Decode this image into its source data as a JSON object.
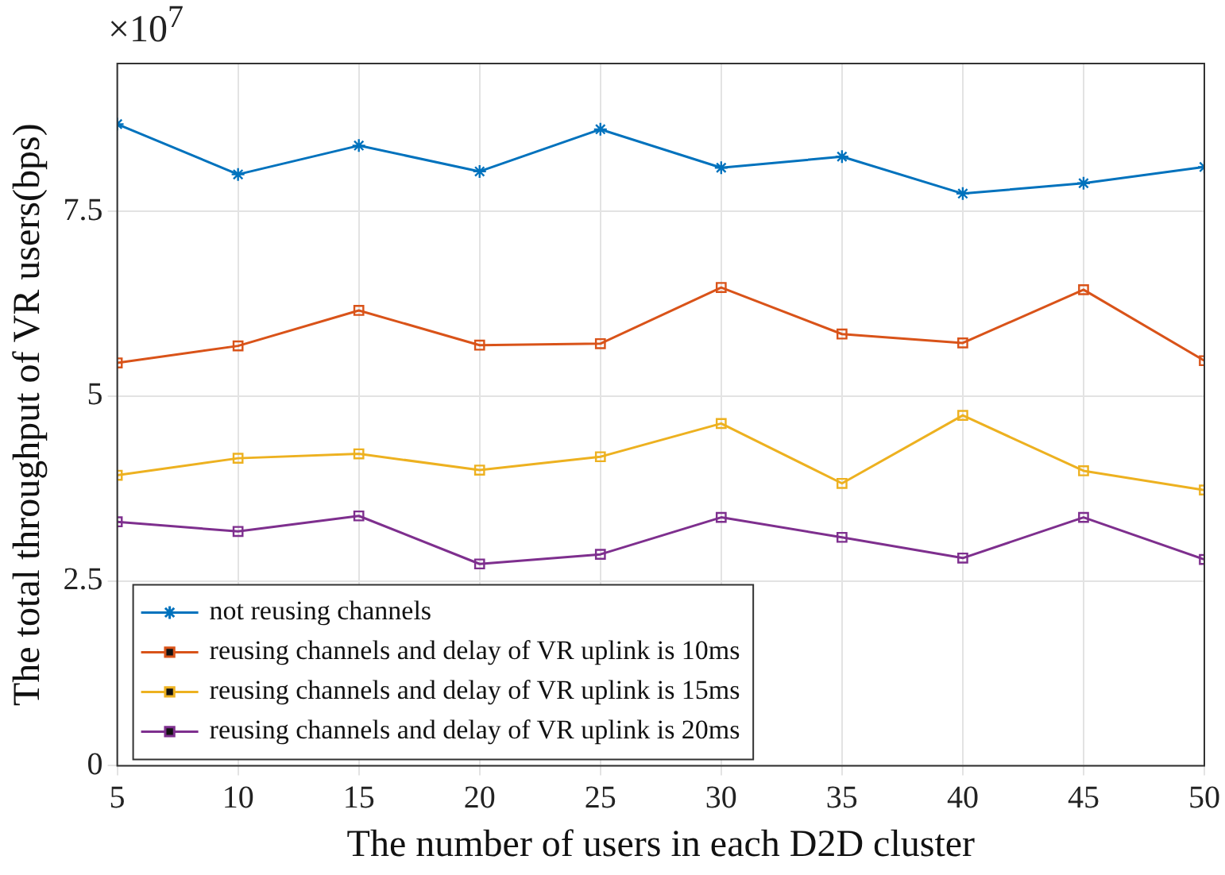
{
  "chart_data": {
    "type": "line",
    "xlabel": "The number of users in each D2D cluster",
    "ylabel": "The total throughput of VR users(bps)",
    "annotations": [
      "×10$^{7}$"
    ],
    "x": [
      5,
      10,
      15,
      20,
      25,
      30,
      35,
      40,
      45,
      50
    ],
    "series": [
      {
        "name": "not reusing channels",
        "color": "#0072bd",
        "marker": "cross",
        "values": [
          8.68,
          8.0,
          8.39,
          8.04,
          8.61,
          8.09,
          8.24,
          7.74,
          7.88,
          8.1
        ]
      },
      {
        "name": "reusing channels and delay of VR uplink is 10ms",
        "color": "#d95319",
        "marker": "square",
        "values": [
          5.45,
          5.68,
          6.16,
          5.69,
          5.71,
          6.47,
          5.84,
          5.72,
          6.44,
          5.48
        ]
      },
      {
        "name": "reusing channels and delay of VR uplink is 15ms",
        "color": "#edb120",
        "marker": "square",
        "values": [
          3.93,
          4.16,
          4.22,
          4.0,
          4.18,
          4.63,
          3.82,
          4.74,
          3.99,
          3.73
        ]
      },
      {
        "name": "reusing channels and delay of VR uplink is 20ms",
        "color": "#7e2f8e",
        "marker": "square",
        "values": [
          3.3,
          3.17,
          3.38,
          2.73,
          2.86,
          3.36,
          3.09,
          2.81,
          3.36,
          2.79
        ]
      }
    ],
    "xlim": [
      5,
      50
    ],
    "xticks": [
      5,
      10,
      15,
      20,
      25,
      30,
      35,
      40,
      45,
      50
    ],
    "ylim": [
      0,
      9.5
    ],
    "yticks": [
      0,
      2.5,
      5,
      7.5
    ],
    "grid": true,
    "legend": "bottom left",
    "line_style": "solid"
  }
}
